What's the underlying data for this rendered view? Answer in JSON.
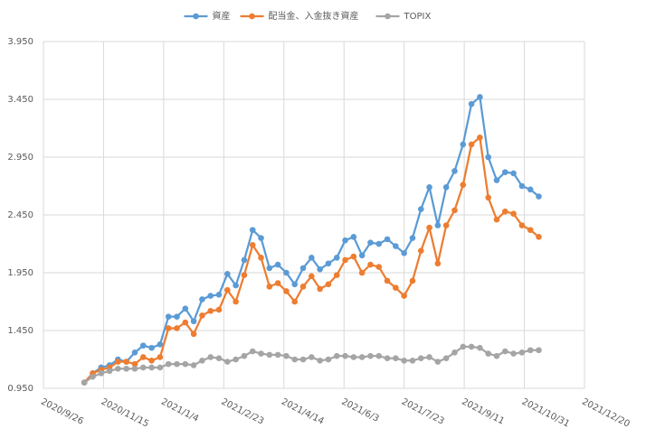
{
  "chart_data": {
    "type": "line",
    "x": [
      "2020/10/30",
      "2020/11/6",
      "2020/11/13",
      "2020/11/20",
      "2020/11/27",
      "2020/12/4",
      "2020/12/11",
      "2020/12/18",
      "2020/12/25",
      "2021/1/1",
      "2021/1/8",
      "2021/1/15",
      "2021/1/22",
      "2021/1/29",
      "2021/2/5",
      "2021/2/12",
      "2021/2/19",
      "2021/2/26",
      "2021/3/5",
      "2021/3/12",
      "2021/3/19",
      "2021/3/26",
      "2021/4/2",
      "2021/4/9",
      "2021/4/16",
      "2021/4/23",
      "2021/4/30",
      "2021/5/7",
      "2021/5/14",
      "2021/5/21",
      "2021/5/28",
      "2021/6/4",
      "2021/6/11",
      "2021/6/18",
      "2021/6/25",
      "2021/7/2",
      "2021/7/9",
      "2021/7/16",
      "2021/7/23",
      "2021/7/30",
      "2021/8/6",
      "2021/8/13",
      "2021/8/20",
      "2021/8/27",
      "2021/9/3",
      "2021/9/10",
      "2021/9/17",
      "2021/9/24",
      "2021/10/1",
      "2021/10/8",
      "2021/10/15",
      "2021/10/22",
      "2021/10/29",
      "2021/11/5",
      "2021/11/12"
    ],
    "series": [
      {
        "name": "資産",
        "color": "#5b9bd5",
        "values": [
          1.0,
          1.08,
          1.13,
          1.15,
          1.2,
          1.18,
          1.26,
          1.32,
          1.3,
          1.33,
          1.57,
          1.57,
          1.64,
          1.53,
          1.72,
          1.75,
          1.76,
          1.94,
          1.84,
          2.06,
          2.32,
          2.25,
          1.99,
          2.02,
          1.95,
          1.85,
          1.99,
          2.08,
          1.98,
          2.03,
          2.08,
          2.23,
          2.26,
          2.1,
          2.21,
          2.2,
          2.24,
          2.18,
          2.12,
          2.25,
          2.5,
          2.69,
          2.36,
          2.69,
          2.83,
          3.06,
          3.41,
          3.47,
          2.95,
          2.75,
          2.82,
          2.81,
          2.7,
          2.67,
          2.61
        ]
      },
      {
        "name": "配当金、入金抜き資産",
        "color": "#ed7d31",
        "values": [
          1.0,
          1.08,
          1.11,
          1.13,
          1.18,
          1.18,
          1.16,
          1.22,
          1.19,
          1.22,
          1.47,
          1.47,
          1.52,
          1.42,
          1.58,
          1.62,
          1.63,
          1.8,
          1.7,
          1.93,
          2.19,
          2.08,
          1.83,
          1.86,
          1.79,
          1.7,
          1.83,
          1.92,
          1.81,
          1.85,
          1.93,
          2.06,
          2.09,
          1.95,
          2.02,
          2.0,
          1.88,
          1.82,
          1.75,
          1.88,
          2.14,
          2.34,
          2.03,
          2.36,
          2.49,
          2.71,
          3.06,
          3.12,
          2.6,
          2.41,
          2.48,
          2.46,
          2.36,
          2.32,
          2.26
        ]
      },
      {
        "name": "TOPIX",
        "color": "#a5a5a5",
        "values": [
          1.0,
          1.05,
          1.08,
          1.1,
          1.12,
          1.12,
          1.12,
          1.13,
          1.13,
          1.13,
          1.16,
          1.16,
          1.16,
          1.15,
          1.19,
          1.22,
          1.21,
          1.18,
          1.2,
          1.23,
          1.27,
          1.25,
          1.24,
          1.24,
          1.23,
          1.2,
          1.2,
          1.22,
          1.19,
          1.2,
          1.23,
          1.23,
          1.22,
          1.22,
          1.23,
          1.23,
          1.21,
          1.21,
          1.19,
          1.19,
          1.21,
          1.22,
          1.18,
          1.21,
          1.26,
          1.31,
          1.31,
          1.3,
          1.25,
          1.23,
          1.27,
          1.25,
          1.26,
          1.28,
          1.28
        ]
      }
    ],
    "xlim": [
      "2020/9/26",
      "2021/12/20"
    ],
    "xticks": [
      "2020/9/26",
      "2020/11/15",
      "2021/1/4",
      "2021/2/23",
      "2021/4/14",
      "2021/6/3",
      "2021/7/23",
      "2021/9/11",
      "2021/10/31",
      "2021/12/20"
    ],
    "ylim": [
      0.95,
      3.95
    ],
    "yticks": [
      {
        "value": 0.95,
        "label": "0.950"
      },
      {
        "value": 1.45,
        "label": "1.450"
      },
      {
        "value": 1.95,
        "label": "1.950"
      },
      {
        "value": 2.45,
        "label": "2.450"
      },
      {
        "value": 2.95,
        "label": "2.950"
      },
      {
        "value": 3.45,
        "label": "3.450"
      },
      {
        "value": 3.95,
        "label": "3.950"
      }
    ],
    "grid": true,
    "legend": "top"
  }
}
